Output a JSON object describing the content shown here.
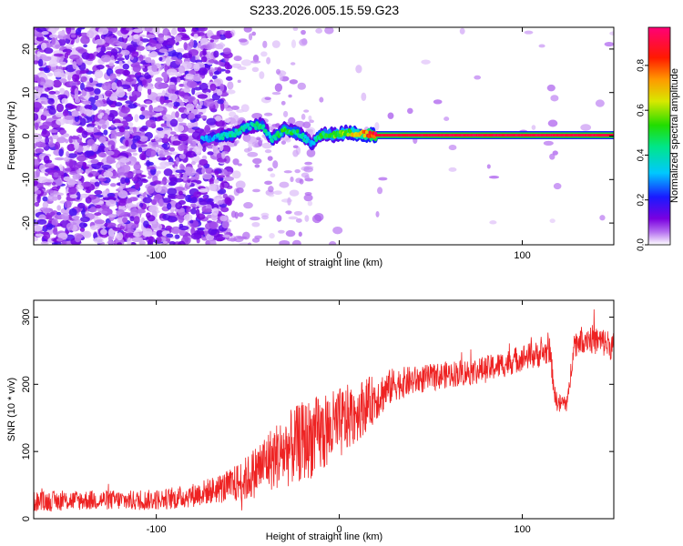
{
  "title": "S233.2026.005.15.59.G23",
  "chart_data": [
    {
      "type": "heatmap",
      "name": "spectrogram",
      "title": "S233.2026.005.15.59.G23",
      "xlabel": "Height of straight line (km)",
      "ylabel": "Frequency (Hz)",
      "xlim": [
        -167,
        150
      ],
      "ylim": [
        -25,
        25
      ],
      "xticks": [
        -100,
        0,
        100
      ],
      "yticks": [
        -20,
        -10,
        0,
        10,
        20
      ],
      "colorbar": {
        "label": "Normalized spectral amplitude",
        "range": [
          0,
          0.97
        ],
        "ticks": [
          0,
          0.2,
          0.4,
          0.6,
          0.8
        ],
        "colormap": "rainbow (purple → blue → cyan → green → yellow → red → magenta)"
      },
      "noise_region_x": [
        -167,
        -60
      ],
      "ridge": [
        {
          "x": -75,
          "freq": -0.5,
          "amplitude": 0.35
        },
        {
          "x": -70,
          "freq": -0.5,
          "amplitude": 0.3
        },
        {
          "x": -58,
          "freq": 0.3,
          "amplitude": 0.45
        },
        {
          "x": -50,
          "freq": 2.2,
          "amplitude": 0.4
        },
        {
          "x": -42,
          "freq": 2.5,
          "amplitude": 0.45
        },
        {
          "x": -37,
          "freq": -0.8,
          "amplitude": 0.4
        },
        {
          "x": -30,
          "freq": 1.5,
          "amplitude": 0.5
        },
        {
          "x": -22,
          "freq": 0.5,
          "amplitude": 0.45
        },
        {
          "x": -15,
          "freq": -1.8,
          "amplitude": 0.3
        },
        {
          "x": -10,
          "freq": 0.4,
          "amplitude": 0.5
        },
        {
          "x": -3,
          "freq": 0.3,
          "amplitude": 0.55
        },
        {
          "x": 5,
          "freq": 0.8,
          "amplitude": 0.6
        },
        {
          "x": 12,
          "freq": 0.5,
          "amplitude": 0.75
        },
        {
          "x": 20,
          "freq": 0.2,
          "amplitude": 0.92
        },
        {
          "x": 60,
          "freq": 0.2,
          "amplitude": 0.95
        },
        {
          "x": 100,
          "freq": 0.2,
          "amplitude": 0.95
        },
        {
          "x": 150,
          "freq": 0.2,
          "amplitude": 0.94
        }
      ]
    },
    {
      "type": "line",
      "name": "snr",
      "xlabel": "Height of straight line (km)",
      "ylabel": "SNR (10 * v/v)",
      "xlim": [
        -167,
        150
      ],
      "ylim": [
        0,
        325
      ],
      "xticks": [
        -100,
        0,
        100
      ],
      "yticks": [
        0,
        100,
        200,
        300
      ],
      "color": "#ee2222",
      "series": [
        {
          "name": "SNR",
          "x": [
            -167,
            -150,
            -130,
            -110,
            -90,
            -80,
            -70,
            -60,
            -50,
            -40,
            -30,
            -20,
            -10,
            0,
            10,
            20,
            30,
            40,
            50,
            60,
            70,
            80,
            90,
            100,
            110,
            115,
            118,
            120,
            125,
            128,
            135,
            140,
            145,
            150
          ],
          "y": [
            25,
            27,
            28,
            27,
            30,
            35,
            42,
            48,
            60,
            85,
            100,
            115,
            125,
            140,
            160,
            180,
            200,
            205,
            210,
            215,
            218,
            222,
            230,
            240,
            245,
            250,
            180,
            170,
            175,
            260,
            270,
            265,
            262,
            255
          ],
          "spread": [
            15,
            15,
            15,
            15,
            16,
            18,
            20,
            25,
            35,
            45,
            55,
            60,
            60,
            55,
            45,
            35,
            25,
            22,
            20,
            20,
            20,
            20,
            20,
            20,
            20,
            20,
            15,
            15,
            15,
            20,
            22,
            22,
            22,
            22
          ]
        }
      ]
    }
  ]
}
